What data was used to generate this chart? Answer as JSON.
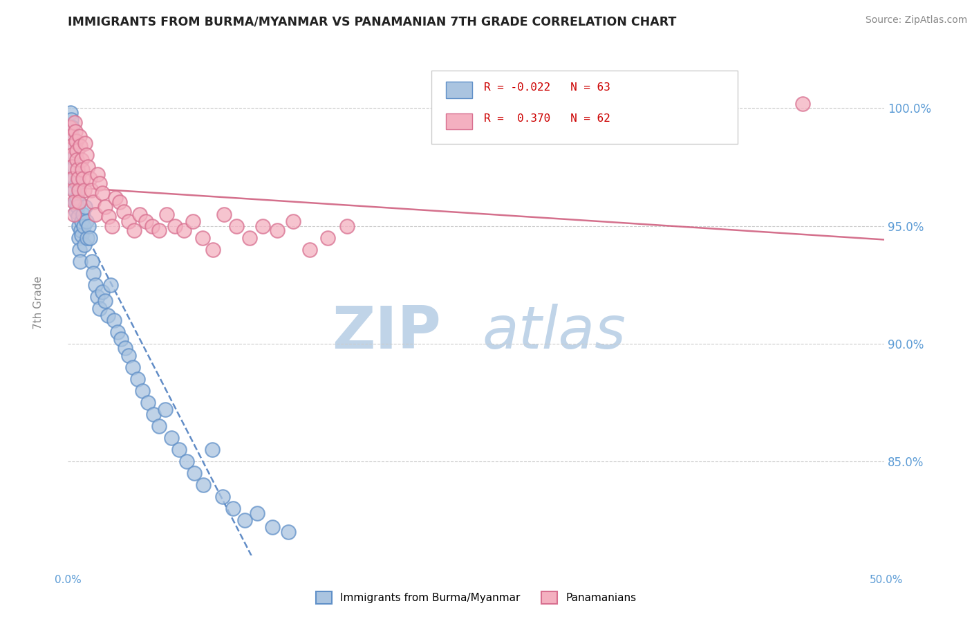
{
  "title": "IMMIGRANTS FROM BURMA/MYANMAR VS PANAMANIAN 7TH GRADE CORRELATION CHART",
  "source_text": "Source: ZipAtlas.com",
  "ylabel": "7th Grade",
  "legend_label1": "Immigrants from Burma/Myanmar",
  "legend_label2": "Panamanians",
  "r1": -0.022,
  "n1": 63,
  "r2": 0.37,
  "n2": 62,
  "xlim": [
    0.0,
    50.0
  ],
  "ylim": [
    81.0,
    102.5
  ],
  "yticks": [
    85.0,
    90.0,
    95.0,
    100.0
  ],
  "ytick_labels": [
    "85.0%",
    "90.0%",
    "95.0%",
    "100.0%"
  ],
  "color_blue_face": "#aac4e0",
  "color_blue_edge": "#6090c8",
  "color_pink_face": "#f4b0c0",
  "color_pink_edge": "#d87090",
  "color_blue_line": "#5080c0",
  "color_pink_line": "#d06080",
  "watermark_zip_color": "#c0d4e8",
  "watermark_atlas_color": "#c0d4e8",
  "blue_x": [
    0.15,
    0.18,
    0.22,
    0.25,
    0.28,
    0.32,
    0.35,
    0.38,
    0.42,
    0.45,
    0.48,
    0.52,
    0.55,
    0.58,
    0.62,
    0.65,
    0.68,
    0.72,
    0.75,
    0.78,
    0.82,
    0.85,
    0.92,
    0.95,
    0.98,
    1.05,
    1.12,
    1.18,
    1.25,
    1.35,
    1.45,
    1.55,
    1.68,
    1.82,
    1.95,
    2.12,
    2.28,
    2.45,
    2.62,
    2.82,
    3.02,
    3.25,
    3.48,
    3.72,
    3.98,
    4.25,
    4.55,
    4.88,
    5.22,
    5.58,
    5.95,
    6.35,
    6.78,
    7.25,
    7.75,
    8.28,
    8.85,
    9.45,
    10.1,
    10.8,
    11.6,
    12.5,
    13.5
  ],
  "blue_y": [
    99.8,
    99.5,
    99.2,
    98.8,
    98.4,
    97.9,
    97.5,
    97.0,
    96.5,
    96.0,
    95.6,
    96.8,
    96.2,
    95.8,
    95.4,
    95.0,
    94.5,
    94.0,
    93.5,
    94.8,
    95.2,
    94.6,
    95.5,
    95.0,
    94.2,
    95.8,
    95.2,
    94.5,
    95.0,
    94.5,
    93.5,
    93.0,
    92.5,
    92.0,
    91.5,
    92.2,
    91.8,
    91.2,
    92.5,
    91.0,
    90.5,
    90.2,
    89.8,
    89.5,
    89.0,
    88.5,
    88.0,
    87.5,
    87.0,
    86.5,
    87.2,
    86.0,
    85.5,
    85.0,
    84.5,
    84.0,
    85.5,
    83.5,
    83.0,
    82.5,
    82.8,
    82.2,
    82.0
  ],
  "pink_x": [
    0.12,
    0.15,
    0.18,
    0.22,
    0.25,
    0.28,
    0.32,
    0.35,
    0.38,
    0.42,
    0.45,
    0.48,
    0.52,
    0.55,
    0.58,
    0.62,
    0.65,
    0.68,
    0.72,
    0.75,
    0.82,
    0.88,
    0.92,
    0.98,
    1.05,
    1.12,
    1.22,
    1.32,
    1.42,
    1.55,
    1.68,
    1.82,
    1.95,
    2.12,
    2.28,
    2.48,
    2.68,
    2.92,
    3.15,
    3.42,
    3.72,
    4.05,
    4.38,
    4.75,
    5.15,
    5.58,
    6.05,
    6.55,
    7.08,
    7.65,
    8.25,
    8.88,
    9.55,
    10.3,
    11.1,
    11.9,
    12.8,
    13.8,
    14.8,
    15.9,
    17.1,
    45.0
  ],
  "pink_y": [
    99.2,
    98.8,
    98.4,
    98.0,
    97.5,
    97.0,
    96.5,
    96.0,
    95.5,
    99.4,
    99.0,
    98.6,
    98.2,
    97.8,
    97.4,
    97.0,
    96.5,
    96.0,
    98.8,
    98.4,
    97.8,
    97.4,
    97.0,
    96.5,
    98.5,
    98.0,
    97.5,
    97.0,
    96.5,
    96.0,
    95.5,
    97.2,
    96.8,
    96.4,
    95.8,
    95.4,
    95.0,
    96.2,
    96.0,
    95.6,
    95.2,
    94.8,
    95.5,
    95.2,
    95.0,
    94.8,
    95.5,
    95.0,
    94.8,
    95.2,
    94.5,
    94.0,
    95.5,
    95.0,
    94.5,
    95.0,
    94.8,
    95.2,
    94.0,
    94.5,
    95.0,
    100.2
  ]
}
